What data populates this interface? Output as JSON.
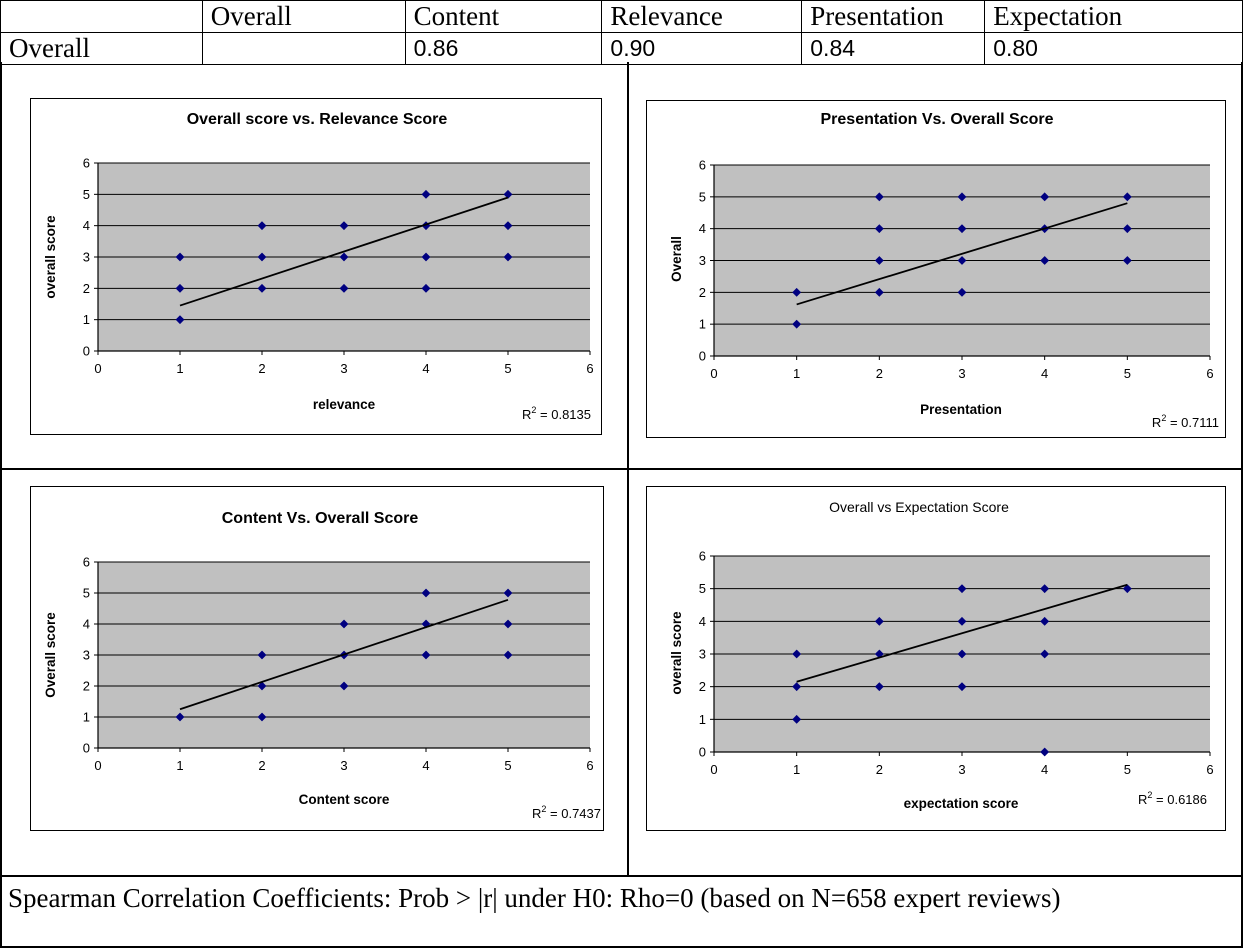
{
  "header_table": {
    "col_headers": [
      "",
      "Overall",
      "Content",
      "Relevance",
      "Presentation",
      "Expectation"
    ],
    "row_label": "Overall",
    "row_values": [
      "",
      "0.86",
      "0.90",
      "0.84",
      "0.80"
    ]
  },
  "footer": "Spearman Correlation Coefficients: Prob > |r| under H0: Rho=0 (based on N=658 expert reviews)",
  "chart_data": [
    {
      "type": "scatter",
      "title": "Overall score vs. Relevance Score",
      "xlabel": "relevance",
      "ylabel": "overall score",
      "xlim": [
        0,
        6
      ],
      "ylim": [
        0,
        6
      ],
      "x_ticks": [
        "0",
        "1",
        "2",
        "3",
        "4",
        "5",
        "6"
      ],
      "y_ticks": [
        "0",
        "1",
        "2",
        "3",
        "4",
        "5",
        "6"
      ],
      "points": [
        [
          1,
          1
        ],
        [
          1,
          2
        ],
        [
          1,
          3
        ],
        [
          2,
          2
        ],
        [
          2,
          3
        ],
        [
          2,
          4
        ],
        [
          3,
          2
        ],
        [
          3,
          3
        ],
        [
          3,
          4
        ],
        [
          4,
          2
        ],
        [
          4,
          3
        ],
        [
          4,
          4
        ],
        [
          4,
          5
        ],
        [
          5,
          3
        ],
        [
          5,
          4
        ],
        [
          5,
          5
        ]
      ],
      "trendline": [
        [
          1,
          1.45
        ],
        [
          5,
          4.9
        ]
      ],
      "r2_text": "0.8135",
      "grid": true,
      "plot_area_color": "#c0c0c0",
      "marker_color": "#000080"
    },
    {
      "type": "scatter",
      "title": "Presentation Vs. Overall Score",
      "xlabel": "Presentation",
      "ylabel": "Overall",
      "xlim": [
        0,
        6
      ],
      "ylim": [
        0,
        6
      ],
      "x_ticks": [
        "0",
        "1",
        "2",
        "3",
        "4",
        "5",
        "6"
      ],
      "y_ticks": [
        "0",
        "1",
        "2",
        "3",
        "4",
        "5",
        "6"
      ],
      "points": [
        [
          1,
          1
        ],
        [
          1,
          2
        ],
        [
          2,
          2
        ],
        [
          2,
          3
        ],
        [
          2,
          4
        ],
        [
          2,
          5
        ],
        [
          3,
          2
        ],
        [
          3,
          3
        ],
        [
          3,
          4
        ],
        [
          3,
          5
        ],
        [
          4,
          3
        ],
        [
          4,
          4
        ],
        [
          4,
          5
        ],
        [
          5,
          3
        ],
        [
          5,
          4
        ],
        [
          5,
          5
        ]
      ],
      "trendline": [
        [
          1,
          1.62
        ],
        [
          5,
          4.8
        ]
      ],
      "r2_text": "0.7111",
      "grid": true,
      "plot_area_color": "#c0c0c0",
      "marker_color": "#000080"
    },
    {
      "type": "scatter",
      "title": "Content Vs. Overall Score",
      "xlabel": "Content score",
      "ylabel": "Overall score",
      "xlim": [
        0,
        6
      ],
      "ylim": [
        0,
        6
      ],
      "x_ticks": [
        "0",
        "1",
        "2",
        "3",
        "4",
        "5",
        "6"
      ],
      "y_ticks": [
        "0",
        "1",
        "2",
        "3",
        "4",
        "5",
        "6"
      ],
      "points": [
        [
          1,
          1
        ],
        [
          2,
          1
        ],
        [
          2,
          2
        ],
        [
          2,
          3
        ],
        [
          3,
          2
        ],
        [
          3,
          3
        ],
        [
          3,
          4
        ],
        [
          4,
          3
        ],
        [
          4,
          4
        ],
        [
          4,
          5
        ],
        [
          5,
          3
        ],
        [
          5,
          4
        ],
        [
          5,
          5
        ]
      ],
      "trendline": [
        [
          1,
          1.25
        ],
        [
          5,
          4.78
        ]
      ],
      "r2_text": "0.7437",
      "grid": true,
      "plot_area_color": "#c0c0c0",
      "marker_color": "#000080"
    },
    {
      "type": "scatter",
      "title": "Overall vs Expectation Score",
      "xlabel": "expectation score",
      "ylabel": "overall score",
      "xlim": [
        0,
        6
      ],
      "ylim": [
        0,
        6
      ],
      "x_ticks": [
        "0",
        "1",
        "2",
        "3",
        "4",
        "5",
        "6"
      ],
      "y_ticks": [
        "0",
        "1",
        "2",
        "3",
        "4",
        "5",
        "6"
      ],
      "points": [
        [
          1,
          1
        ],
        [
          1,
          2
        ],
        [
          1,
          3
        ],
        [
          2,
          2
        ],
        [
          2,
          3
        ],
        [
          2,
          4
        ],
        [
          3,
          2
        ],
        [
          3,
          3
        ],
        [
          3,
          4
        ],
        [
          3,
          5
        ],
        [
          4,
          0
        ],
        [
          4,
          3
        ],
        [
          4,
          4
        ],
        [
          4,
          5
        ],
        [
          5,
          5
        ]
      ],
      "trendline": [
        [
          1,
          2.15
        ],
        [
          5,
          5.12
        ]
      ],
      "r2_text": "0.6186",
      "grid": true,
      "plot_area_color": "#c0c0c0",
      "marker_color": "#000080"
    }
  ]
}
